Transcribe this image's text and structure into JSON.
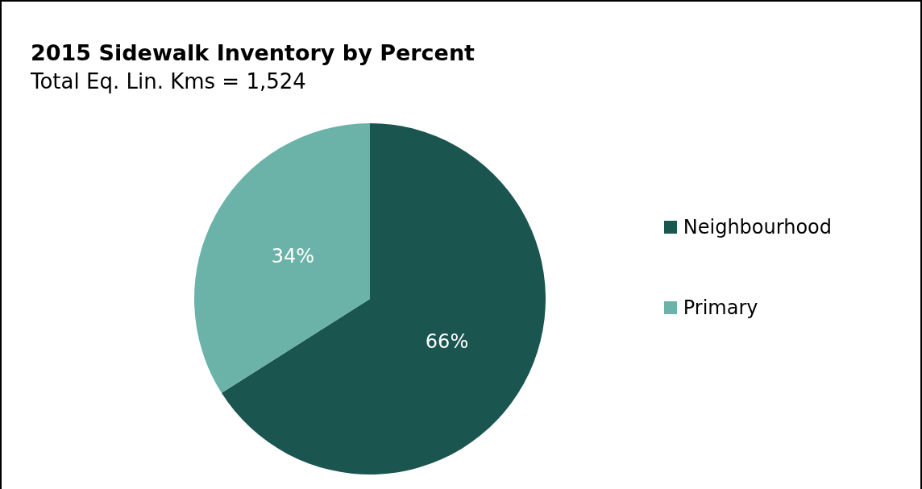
{
  "chart_data": {
    "type": "pie",
    "title": "2015 Sidewalk Inventory by Percent",
    "subtitle": "Total Eq. Lin. Kms = 1,524",
    "categories": [
      "Neighbourhood",
      "Primary"
    ],
    "values": [
      66,
      34
    ],
    "colors": [
      "#1b5550",
      "#6bb3a8"
    ],
    "value_labels": [
      "66%",
      "34%"
    ],
    "legend": "right"
  }
}
